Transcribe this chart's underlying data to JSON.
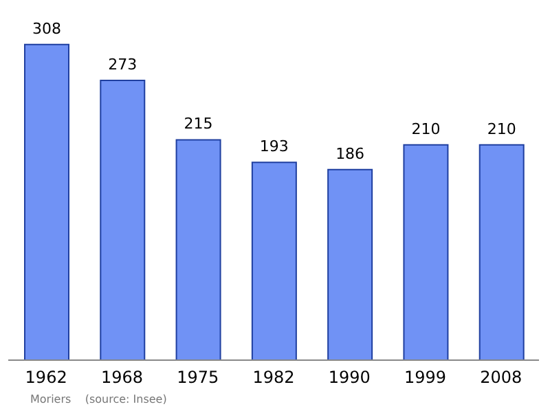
{
  "chart_data": {
    "type": "bar",
    "categories": [
      "1962",
      "1968",
      "1975",
      "1982",
      "1990",
      "1999",
      "2008"
    ],
    "values": [
      308,
      273,
      215,
      193,
      186,
      210,
      210
    ],
    "color": "#7092f5",
    "data_labels": true,
    "annotations": [
      "Moriers    (source: Insee)"
    ]
  }
}
